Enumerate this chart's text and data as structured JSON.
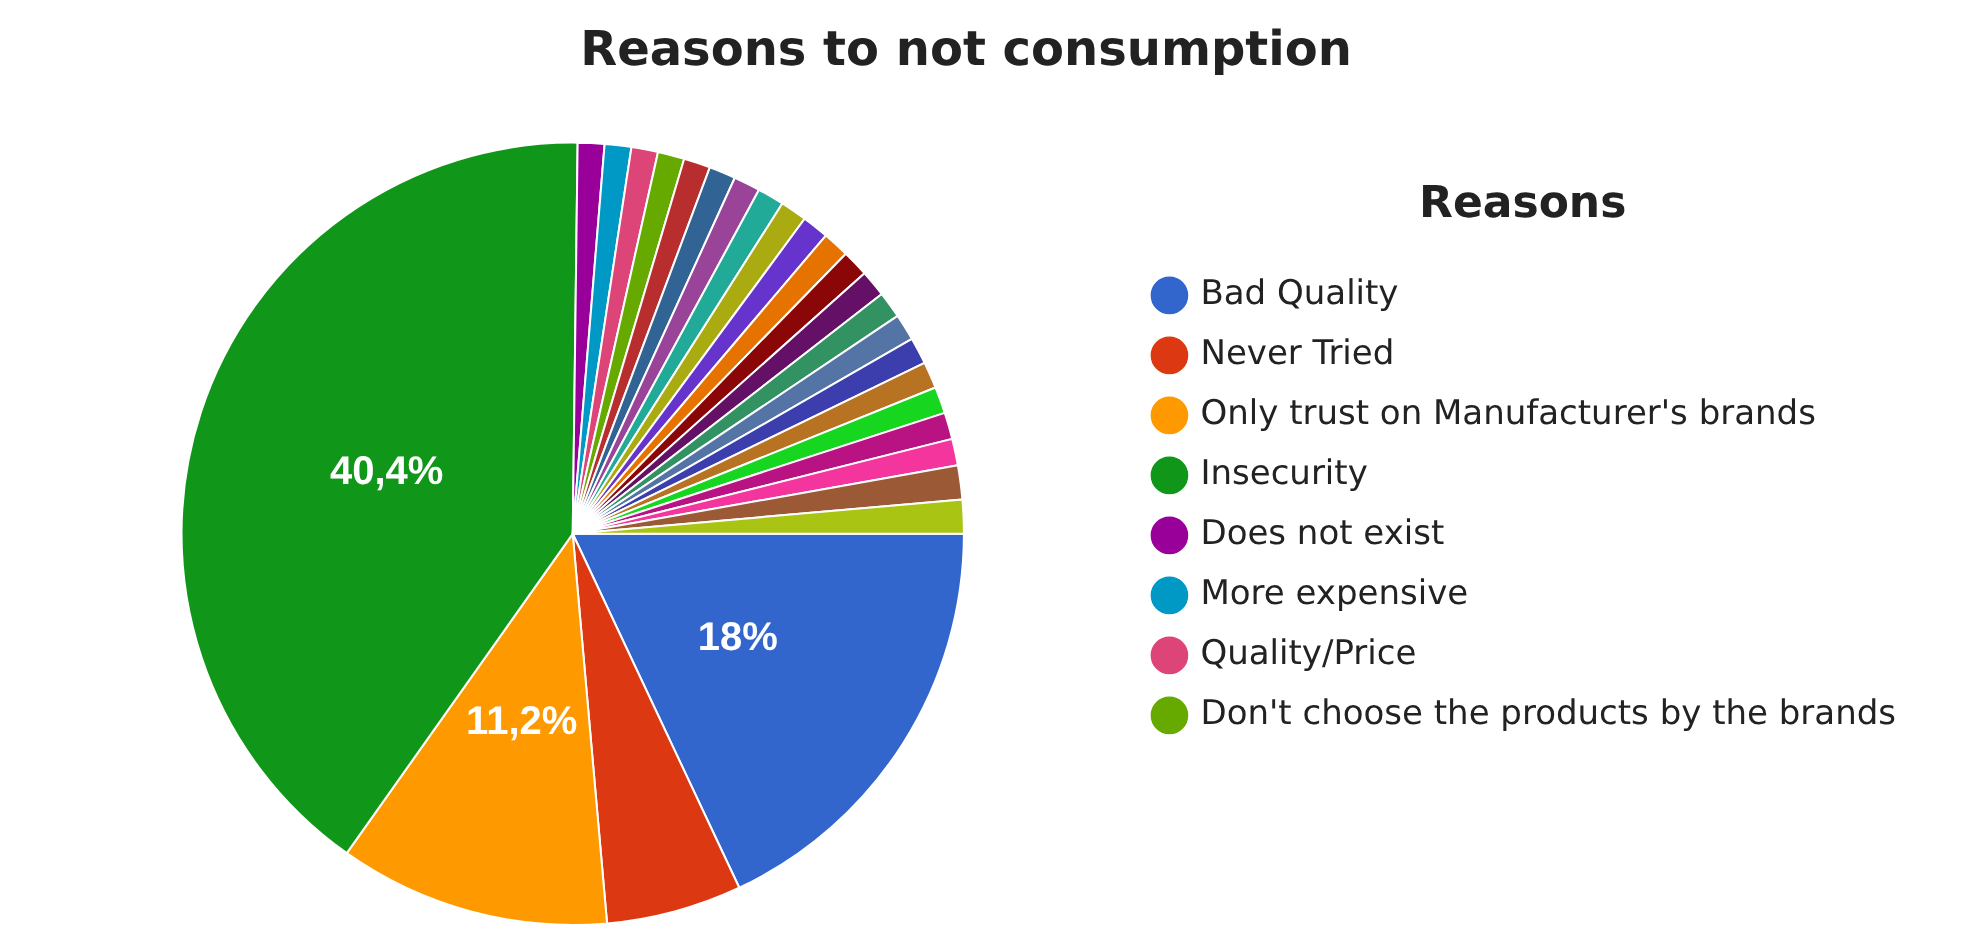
{
  "chart_data": {
    "type": "pie",
    "title": "Reasons to not consumption",
    "legend_title": "Reasons",
    "legend": "right",
    "categories": [
      "Bad Quality",
      "Never Tried",
      "Only trust on Manufacturer's brands",
      "Insecurity",
      "Does not exist",
      "More expensive",
      "Quality/Price",
      "Don't choose the products by the brands",
      null,
      null,
      null,
      null,
      null,
      null,
      null,
      null,
      null,
      null,
      null,
      null,
      null,
      null,
      null,
      null,
      null,
      null
    ],
    "values": [
      18,
      5.6,
      11.2,
      40.4,
      1.1,
      1.1,
      1.1,
      1.1,
      1.1,
      1.1,
      1.1,
      1.1,
      1.1,
      1.1,
      1.1,
      1.1,
      1.1,
      1.1,
      1.1,
      1.1,
      1.1,
      1.1,
      1.1,
      1.1,
      1.4,
      1.4
    ],
    "colors": [
      "#3366cc",
      "#dc3912",
      "#ff9900",
      "#109618",
      "#990099",
      "#0099c6",
      "#dd4477",
      "#66aa00",
      "#b82e2e",
      "#316395",
      "#994499",
      "#22aa99",
      "#aaaa11",
      "#6633cc",
      "#e67300",
      "#8b0707",
      "#651067",
      "#329262",
      "#5574a6",
      "#3b3eac",
      "#b77322",
      "#16d620",
      "#b91383",
      "#f4359e",
      "#9c5935",
      "#a9c413"
    ],
    "value_labels": [
      "18%",
      null,
      "11,2%",
      "40,4%",
      null,
      null,
      null,
      null,
      null,
      null,
      null,
      null,
      null,
      null,
      null,
      null,
      null,
      null,
      null,
      null,
      null,
      null,
      null,
      null,
      null,
      null
    ]
  }
}
